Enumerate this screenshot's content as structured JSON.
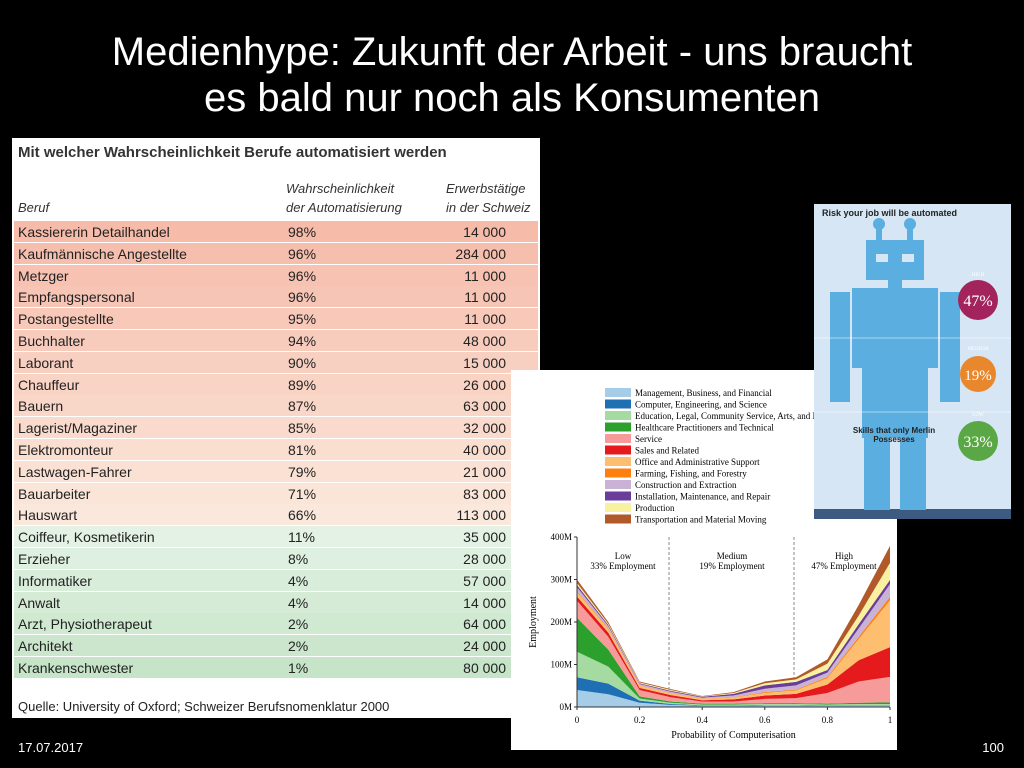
{
  "title_lines": [
    "Medienhype: Zukunft der Arbeit - uns braucht",
    "es bald nur noch als Konsumenten"
  ],
  "table": {
    "title": "Mit welcher Wahrscheinlichkeit Berufe automatisiert werden",
    "headers": [
      "Beruf",
      "Wahrscheinlichkeit\nder Automatisierung",
      "Erwerbstätige\nin der Schweiz"
    ],
    "rows": [
      [
        "Kassiererin Detailhandel",
        "98%",
        "14 000"
      ],
      [
        "Kaufmännische Angestellte",
        "96%",
        "284 000"
      ],
      [
        "Metzger",
        "96%",
        "11 000"
      ],
      [
        "Empfangspersonal",
        "96%",
        "11 000"
      ],
      [
        "Postangestellte",
        "95%",
        "11 000"
      ],
      [
        "Buchhalter",
        "94%",
        "48 000"
      ],
      [
        "Laborant",
        "90%",
        "15 000"
      ],
      [
        "Chauffeur",
        "89%",
        "26 000"
      ],
      [
        "Bauern",
        "87%",
        "63 000"
      ],
      [
        "Lagerist/Magaziner",
        "85%",
        "32 000"
      ],
      [
        "Elektromonteur",
        "81%",
        "40 000"
      ],
      [
        "Lastwagen-Fahrer",
        "79%",
        "21 000"
      ],
      [
        "Bauarbeiter",
        "71%",
        "83 000"
      ],
      [
        "Hauswart",
        "66%",
        "113 000"
      ],
      [
        "Coiffeur, Kosmetikerin",
        "11%",
        "35 000"
      ],
      [
        "Erzieher",
        "8%",
        "28 000"
      ],
      [
        "Informatiker",
        "4%",
        "57 000"
      ],
      [
        "Anwalt",
        "4%",
        "14 000"
      ],
      [
        "Arzt, Physiotherapeut",
        "2%",
        "64 000"
      ],
      [
        "Architekt",
        "2%",
        "24 000"
      ],
      [
        "Krankenschwester",
        "1%",
        "80 000"
      ]
    ],
    "source": "Quelle: University of Oxford; Schweizer Berufsnomenklatur 2000"
  },
  "chart_data": {
    "type": "stacked_area",
    "x_label": "Probability of Computerisation",
    "y_label": "Employment",
    "annotations": [
      "Low",
      "33% Employment",
      "Medium",
      "19% Employment",
      "High",
      "47% Employment"
    ],
    "x": [
      0,
      0.1,
      0.2,
      0.3,
      0.4,
      0.5,
      0.6,
      0.7,
      0.8,
      0.9,
      1
    ],
    "xlim": [
      0,
      1
    ],
    "xticks": [
      0,
      0.2,
      0.4,
      0.6,
      0.8,
      1
    ],
    "ylim": [
      0,
      400
    ],
    "yticks": [
      {
        "value": 0,
        "label": "0M"
      },
      {
        "value": 100,
        "label": "100M"
      },
      {
        "value": 200,
        "label": "200M"
      },
      {
        "value": 300,
        "label": "300M"
      },
      {
        "value": 400,
        "label": "400M"
      }
    ],
    "series": [
      {
        "name": "Management, Business, and Financial",
        "color": "#a6cde8",
        "values": [
          40,
          30,
          10,
          5,
          3,
          3,
          4,
          4,
          3,
          3,
          3
        ]
      },
      {
        "name": "Computer, Engineering, and Science",
        "color": "#1f6fb4",
        "values": [
          30,
          25,
          5,
          2,
          1,
          1,
          1,
          1,
          1,
          1,
          1
        ]
      },
      {
        "name": "Education, Legal, Community Service, Arts, and Media",
        "color": "#a5dba0",
        "values": [
          60,
          40,
          5,
          3,
          2,
          2,
          2,
          2,
          2,
          3,
          3
        ]
      },
      {
        "name": "Healthcare Practitioners and Technical",
        "color": "#2ca02c",
        "values": [
          80,
          40,
          5,
          3,
          2,
          2,
          2,
          2,
          2,
          3,
          4
        ]
      },
      {
        "name": "Service",
        "color": "#f79a9a",
        "values": [
          40,
          30,
          15,
          10,
          5,
          5,
          10,
          12,
          25,
          50,
          60
        ]
      },
      {
        "name": "Sales and Related",
        "color": "#e41a1c",
        "values": [
          10,
          10,
          5,
          5,
          3,
          5,
          8,
          10,
          20,
          50,
          70
        ]
      },
      {
        "name": "Office and Administrative Support",
        "color": "#fdbf6f",
        "values": [
          10,
          8,
          5,
          4,
          3,
          4,
          6,
          8,
          15,
          50,
          110
        ]
      },
      {
        "name": "Farming, Fishing, and Forestry",
        "color": "#ff7f0e",
        "values": [
          2,
          2,
          1,
          1,
          1,
          1,
          2,
          2,
          3,
          5,
          8
        ]
      },
      {
        "name": "Construction and Extraction",
        "color": "#cab2d6",
        "values": [
          10,
          5,
          3,
          3,
          2,
          4,
          8,
          10,
          10,
          20,
          30
        ]
      },
      {
        "name": "Installation, Maintenance, and Repair",
        "color": "#6a3d9a",
        "values": [
          5,
          3,
          2,
          2,
          2,
          4,
          8,
          8,
          6,
          10,
          10
        ]
      },
      {
        "name": "Production",
        "color": "#f7f1a0",
        "values": [
          5,
          3,
          2,
          2,
          1,
          2,
          5,
          6,
          15,
          20,
          40
        ]
      },
      {
        "name": "Transportation and Material Moving",
        "color": "#b15928",
        "values": [
          8,
          4,
          2,
          2,
          1,
          2,
          4,
          5,
          10,
          25,
          40
        ]
      }
    ]
  },
  "infographic": {
    "title": "Risk your job will be automated",
    "levels": [
      {
        "name": "HIGH",
        "value": "47%"
      },
      {
        "name": "MEDIUM",
        "value": "19%"
      },
      {
        "name": "LOW",
        "value": "33%"
      }
    ],
    "caption": "Skills that only Merlin Possesses"
  },
  "footer": {
    "date": "17.07.2017",
    "page": "100"
  }
}
